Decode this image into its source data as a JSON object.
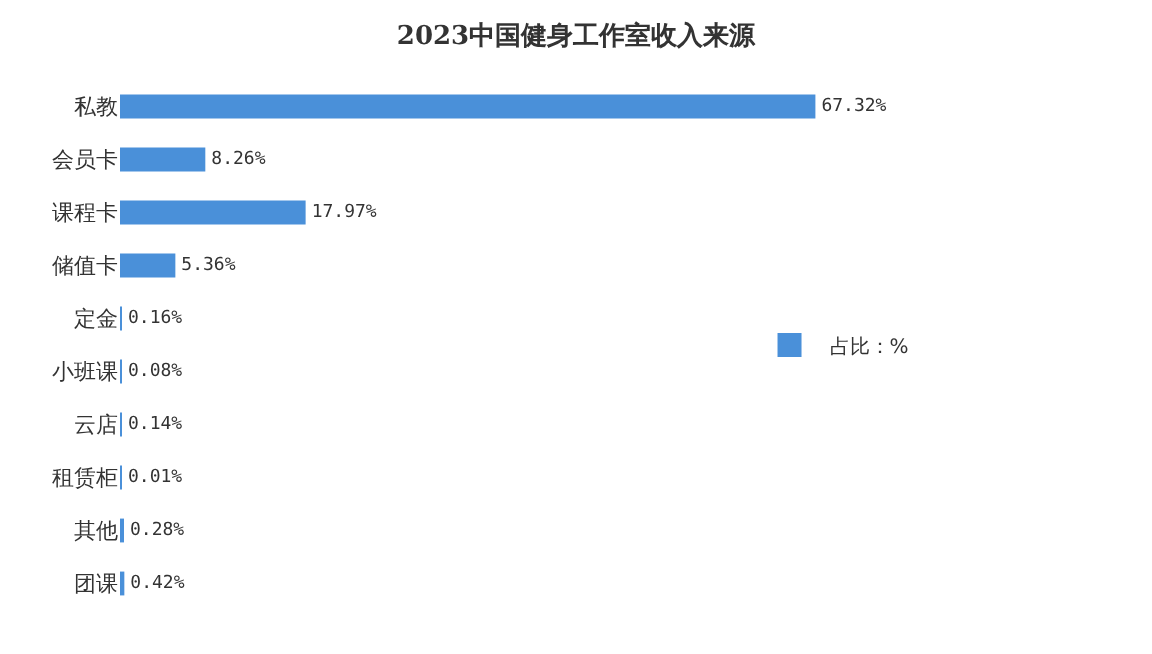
{
  "chart_data": {
    "type": "bar",
    "orientation": "horizontal",
    "title": "2023中国健身工作室收入来源",
    "categories": [
      "私教",
      "会员卡",
      "课程卡",
      "储值卡",
      "定金",
      "小班课",
      "云店",
      "租赁柜",
      "其他",
      "团课"
    ],
    "series": [
      {
        "name": "占比：%",
        "color": "#4a90d9",
        "values": [
          67.32,
          8.26,
          17.97,
          5.36,
          0.16,
          0.08,
          0.14,
          0.01,
          0.28,
          0.42
        ],
        "value_labels": [
          "67.32%",
          "8.26%",
          "17.97%",
          "5.36%",
          "0.16%",
          "0.08%",
          "0.14%",
          "0.01%",
          "0.28%",
          "0.42%"
        ]
      }
    ],
    "legend": "right",
    "tick_labels": "y"
  }
}
